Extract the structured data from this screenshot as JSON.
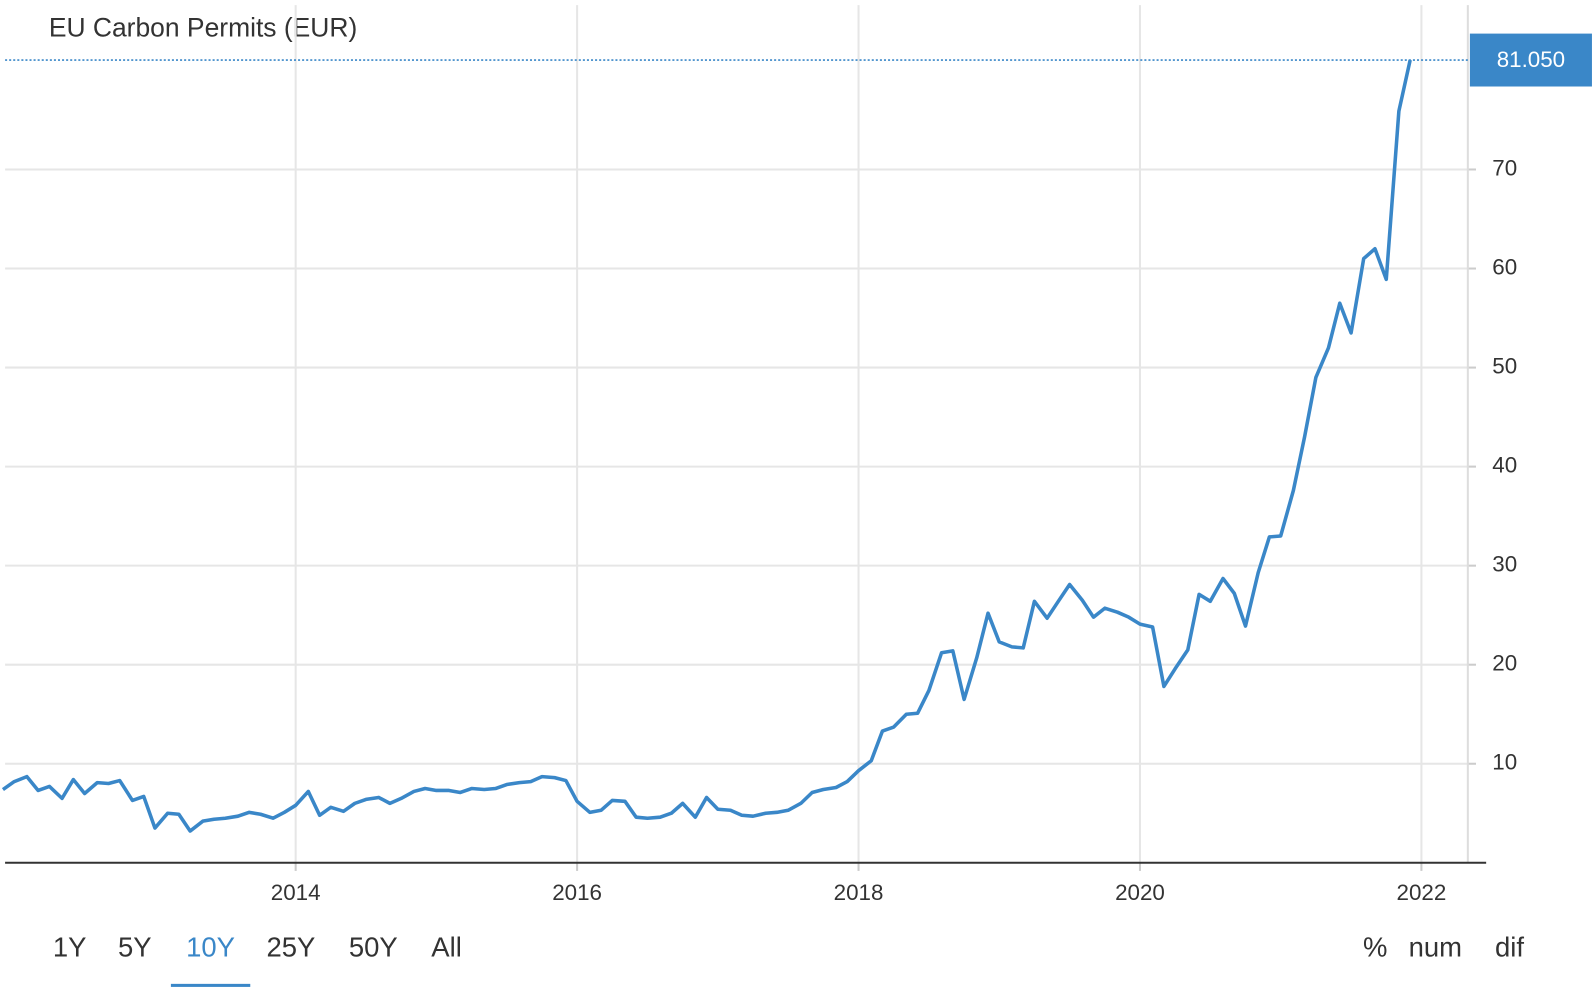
{
  "chart_data": {
    "type": "line",
    "title": "EU Carbon Permits (EUR)",
    "x": [
      2011.92,
      2012.0,
      2012.09,
      2012.17,
      2012.25,
      2012.34,
      2012.42,
      2012.5,
      2012.59,
      2012.67,
      2012.75,
      2012.84,
      2012.92,
      2013.0,
      2013.09,
      2013.17,
      2013.25,
      2013.34,
      2013.42,
      2013.5,
      2013.59,
      2013.67,
      2013.75,
      2013.84,
      2013.92,
      2014.0,
      2014.09,
      2014.17,
      2014.25,
      2014.34,
      2014.42,
      2014.5,
      2014.59,
      2014.67,
      2014.75,
      2014.84,
      2014.92,
      2015.0,
      2015.09,
      2015.17,
      2015.25,
      2015.34,
      2015.42,
      2015.5,
      2015.59,
      2015.67,
      2015.75,
      2015.84,
      2015.92,
      2016.0,
      2016.09,
      2016.17,
      2016.25,
      2016.34,
      2016.42,
      2016.5,
      2016.59,
      2016.67,
      2016.75,
      2016.84,
      2016.92,
      2017.0,
      2017.09,
      2017.17,
      2017.25,
      2017.34,
      2017.42,
      2017.5,
      2017.59,
      2017.67,
      2017.75,
      2017.84,
      2017.92,
      2018.0,
      2018.09,
      2018.17,
      2018.25,
      2018.34,
      2018.42,
      2018.5,
      2018.59,
      2018.67,
      2018.75,
      2018.84,
      2018.92,
      2019.0,
      2019.09,
      2019.17,
      2019.25,
      2019.34,
      2019.42,
      2019.5,
      2019.59,
      2019.67,
      2019.75,
      2019.84,
      2019.92,
      2020.0,
      2020.09,
      2020.17,
      2020.25,
      2020.34,
      2020.42,
      2020.5,
      2020.59,
      2020.67,
      2020.75,
      2020.84,
      2020.92,
      2021.0,
      2021.09,
      2021.17,
      2021.25,
      2021.34,
      2021.42,
      2021.5,
      2021.59,
      2021.67,
      2021.75,
      2021.84,
      2021.92
    ],
    "series": [
      {
        "name": "EU Carbon Permits",
        "color": "#3a87c8",
        "values": [
          7.4,
          8.2,
          8.7,
          7.3,
          7.7,
          6.5,
          8.4,
          7.0,
          8.1,
          8.0,
          8.3,
          6.3,
          6.7,
          3.5,
          5.0,
          4.9,
          3.2,
          4.2,
          4.4,
          4.5,
          4.7,
          5.1,
          4.9,
          4.5,
          5.1,
          5.8,
          7.2,
          4.8,
          5.6,
          5.2,
          6.0,
          6.4,
          6.6,
          6.0,
          6.5,
          7.2,
          7.5,
          7.3,
          7.3,
          7.1,
          7.5,
          7.4,
          7.5,
          7.9,
          8.1,
          8.2,
          8.7,
          8.6,
          8.3,
          6.2,
          5.1,
          5.3,
          6.3,
          6.2,
          4.6,
          4.5,
          4.6,
          5.0,
          6.0,
          4.6,
          6.6,
          5.4,
          5.3,
          4.8,
          4.7,
          5.0,
          5.1,
          5.3,
          6.0,
          7.1,
          7.4,
          7.6,
          8.2,
          9.3,
          10.3,
          13.3,
          13.7,
          15.0,
          15.1,
          17.4,
          21.2,
          21.4,
          16.5,
          20.7,
          25.2,
          22.3,
          21.8,
          21.7,
          26.4,
          24.7,
          26.4,
          28.1,
          26.5,
          24.8,
          25.7,
          25.3,
          24.8,
          24.1,
          23.8,
          17.8,
          19.6,
          21.5,
          27.1,
          26.4,
          28.7,
          27.2,
          23.9,
          29.3,
          32.9,
          33.0,
          37.6,
          43.0,
          49.0,
          52.0,
          56.5,
          53.5,
          61.0,
          62.0,
          58.9,
          75.9,
          81.05
        ]
      }
    ],
    "last_value_label": "81.050",
    "xlim": [
      2011.935,
      2022.33
    ],
    "xticks": [
      2014,
      2016,
      2018,
      2020,
      2022
    ],
    "ylim": [
      0,
      86.6
    ],
    "yticks": [
      10,
      20,
      30,
      40,
      50,
      60,
      70
    ],
    "grid": true
  },
  "controls": {
    "ranges": [
      "1Y",
      "5Y",
      "10Y",
      "25Y",
      "50Y",
      "All"
    ],
    "active": "10Y",
    "modes": [
      "%",
      "num",
      "dif"
    ]
  }
}
